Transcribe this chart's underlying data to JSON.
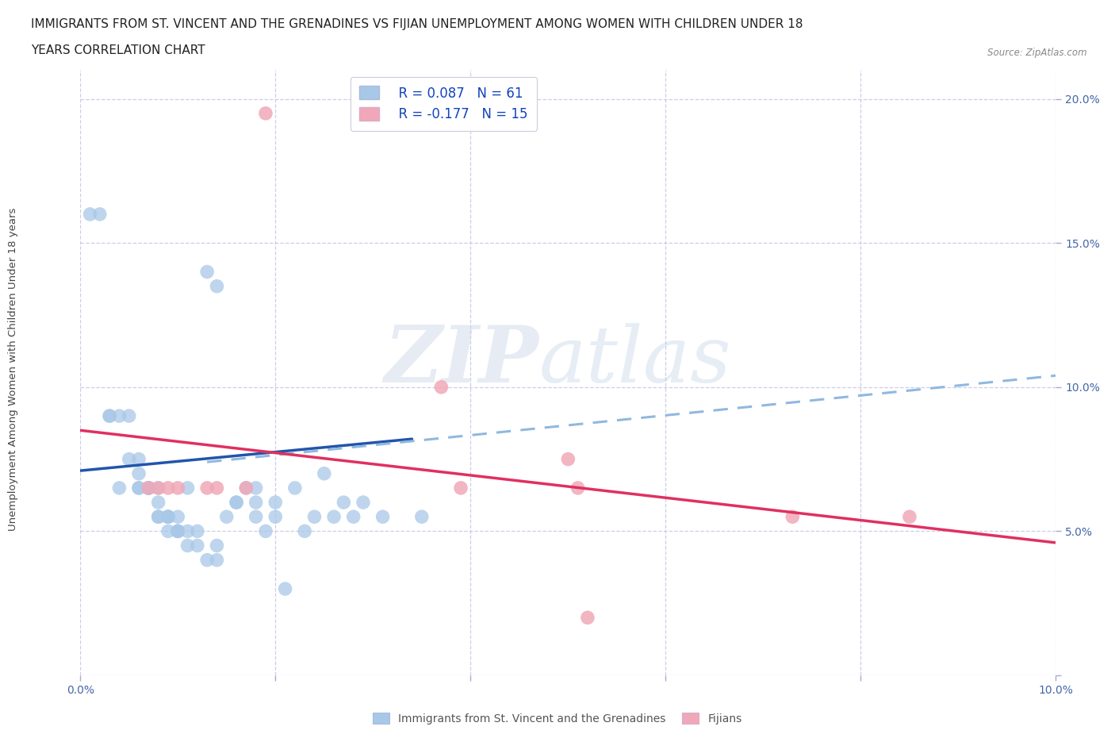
{
  "title_line1": "IMMIGRANTS FROM ST. VINCENT AND THE GRENADINES VS FIJIAN UNEMPLOYMENT AMONG WOMEN WITH CHILDREN UNDER 18",
  "title_line2": "YEARS CORRELATION CHART",
  "source": "Source: ZipAtlas.com",
  "ylabel": "Unemployment Among Women with Children Under 18 years",
  "xmin": 0.0,
  "xmax": 0.1,
  "ymin": 0.0,
  "ymax": 0.21,
  "yticks": [
    0.0,
    0.05,
    0.1,
    0.15,
    0.2
  ],
  "ytick_labels": [
    "",
    "5.0%",
    "10.0%",
    "15.0%",
    "20.0%"
  ],
  "xticks": [
    0.0,
    0.02,
    0.04,
    0.06,
    0.08,
    0.1
  ],
  "xtick_labels": [
    "0.0%",
    "",
    "",
    "",
    "",
    "10.0%"
  ],
  "grid_color": "#c8c8e8",
  "background_color": "#ffffff",
  "watermark_zip": "ZIP",
  "watermark_atlas": "atlas",
  "blue_color": "#a8c8e8",
  "pink_color": "#f0a8b8",
  "blue_line_color": "#2255aa",
  "pink_line_color": "#e03060",
  "dashed_line_color": "#90b8e0",
  "legend_R_blue": "R = 0.087",
  "legend_N_blue": "N = 61",
  "legend_R_pink": "R = -0.177",
  "legend_N_pink": "N = 15",
  "legend_label_blue": "Immigrants from St. Vincent and the Grenadines",
  "legend_label_pink": "Fijians",
  "blue_points_x": [
    0.001,
    0.002,
    0.003,
    0.003,
    0.004,
    0.004,
    0.005,
    0.005,
    0.006,
    0.006,
    0.006,
    0.006,
    0.007,
    0.007,
    0.007,
    0.007,
    0.007,
    0.008,
    0.008,
    0.008,
    0.008,
    0.009,
    0.009,
    0.009,
    0.009,
    0.009,
    0.01,
    0.01,
    0.01,
    0.01,
    0.011,
    0.011,
    0.011,
    0.012,
    0.012,
    0.013,
    0.013,
    0.014,
    0.014,
    0.014,
    0.015,
    0.016,
    0.016,
    0.017,
    0.018,
    0.018,
    0.018,
    0.019,
    0.02,
    0.02,
    0.021,
    0.022,
    0.023,
    0.024,
    0.025,
    0.026,
    0.027,
    0.028,
    0.029,
    0.031,
    0.035
  ],
  "blue_points_y": [
    0.16,
    0.16,
    0.09,
    0.09,
    0.09,
    0.065,
    0.075,
    0.09,
    0.065,
    0.065,
    0.07,
    0.075,
    0.065,
    0.065,
    0.065,
    0.065,
    0.065,
    0.055,
    0.055,
    0.06,
    0.065,
    0.05,
    0.055,
    0.055,
    0.055,
    0.055,
    0.05,
    0.05,
    0.05,
    0.055,
    0.045,
    0.05,
    0.065,
    0.045,
    0.05,
    0.04,
    0.14,
    0.04,
    0.045,
    0.135,
    0.055,
    0.06,
    0.06,
    0.065,
    0.055,
    0.06,
    0.065,
    0.05,
    0.055,
    0.06,
    0.03,
    0.065,
    0.05,
    0.055,
    0.07,
    0.055,
    0.06,
    0.055,
    0.06,
    0.055,
    0.055
  ],
  "pink_points_x": [
    0.007,
    0.008,
    0.009,
    0.01,
    0.013,
    0.014,
    0.017,
    0.019,
    0.037,
    0.039,
    0.05,
    0.051,
    0.052,
    0.073,
    0.085
  ],
  "pink_points_y": [
    0.065,
    0.065,
    0.065,
    0.065,
    0.065,
    0.065,
    0.065,
    0.195,
    0.1,
    0.065,
    0.075,
    0.065,
    0.02,
    0.055,
    0.055
  ],
  "blue_trendline_x": [
    0.0,
    0.034
  ],
  "blue_trendline_y": [
    0.071,
    0.082
  ],
  "dashed_trendline_x": [
    0.013,
    0.1
  ],
  "dashed_trendline_y": [
    0.074,
    0.104
  ],
  "pink_trendline_x": [
    0.0,
    0.1
  ],
  "pink_trendline_y": [
    0.085,
    0.046
  ]
}
